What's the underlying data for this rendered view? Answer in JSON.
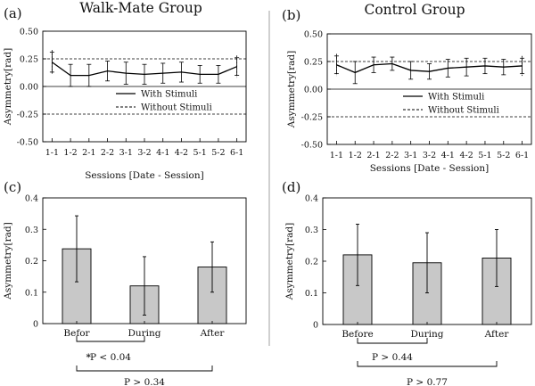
{
  "chart_data": [
    {
      "panel": "(a)",
      "title": "Walk-Mate Group",
      "type": "line",
      "xlabel": "Sessions [Date - Session]",
      "ylabel": "Asymmetry[rad]",
      "categories": [
        "1-1",
        "1-2",
        "2-1",
        "2-2",
        "3-1",
        "3-2",
        "4-1",
        "4-2",
        "5-1",
        "5-2",
        "6-1"
      ],
      "yticks": [
        "0.50",
        "0.25",
        "0.00",
        "-0.25",
        "-0.50"
      ],
      "ylim": [
        -0.5,
        0.5
      ],
      "reference_lines": [
        0.25,
        -0.25
      ],
      "series": [
        {
          "name": "With Stimuli",
          "style": "solid",
          "values": [
            0.22,
            0.1,
            0.1,
            0.14,
            0.12,
            0.11,
            0.12,
            0.13,
            0.11,
            0.11,
            0.18
          ],
          "error": [
            0.09,
            0.1,
            0.1,
            0.09,
            0.1,
            0.09,
            0.09,
            0.09,
            0.08,
            0.08,
            0.08
          ]
        },
        {
          "name": "Without Stimuli",
          "style": "dashed"
        }
      ]
    },
    {
      "panel": "(b)",
      "title": "Control Group",
      "type": "line",
      "xlabel": "Sessions [Date - Session]",
      "ylabel": "Asymmetry[rad]",
      "categories": [
        "1-1",
        "1-2",
        "2-1",
        "2-2",
        "3-1",
        "3-2",
        "4-1",
        "4-2",
        "5-1",
        "5-2",
        "6-1"
      ],
      "yticks": [
        "0.50",
        "0.25",
        "0.00",
        "-0.25",
        "-0.50"
      ],
      "ylim": [
        -0.5,
        0.5
      ],
      "reference_lines": [
        0.25,
        -0.25
      ],
      "series": [
        {
          "name": "With Stimuli",
          "style": "solid",
          "values": [
            0.22,
            0.15,
            0.22,
            0.23,
            0.17,
            0.16,
            0.19,
            0.2,
            0.21,
            0.2,
            0.21
          ],
          "error": [
            0.08,
            0.1,
            0.07,
            0.06,
            0.08,
            0.07,
            0.08,
            0.08,
            0.07,
            0.07,
            0.07
          ]
        },
        {
          "name": "Without Stimuli",
          "style": "dashed"
        }
      ]
    },
    {
      "panel": "(c)",
      "type": "bar",
      "ylabel": "Asymmetry[rad]",
      "categories": [
        "Befor",
        "During",
        "After"
      ],
      "values": [
        0.238,
        0.12,
        0.18
      ],
      "error": [
        0.105,
        0.093,
        0.08
      ],
      "yticks": [
        "0",
        "0.1",
        "0.2",
        "0.3",
        "0.4"
      ],
      "ylim": [
        0,
        0.4
      ],
      "comparisons": [
        {
          "from": 0,
          "to": 1,
          "label": "P < 0.04",
          "star": "*"
        },
        {
          "from": 0,
          "to": 2,
          "label": "P > 0.34",
          "star": ""
        }
      ]
    },
    {
      "panel": "(d)",
      "type": "bar",
      "ylabel": "Asymmetry[rad]",
      "categories": [
        "Before",
        "During",
        "After"
      ],
      "values": [
        0.22,
        0.195,
        0.21
      ],
      "error": [
        0.097,
        0.095,
        0.09
      ],
      "yticks": [
        "0",
        "0.1",
        "0.2",
        "0.3",
        "0.4"
      ],
      "ylim": [
        0,
        0.4
      ],
      "comparisons": [
        {
          "from": 0,
          "to": 1,
          "label": "P > 0.44",
          "star": ""
        },
        {
          "from": 0,
          "to": 2,
          "label": "P > 0.77",
          "star": ""
        }
      ]
    }
  ]
}
